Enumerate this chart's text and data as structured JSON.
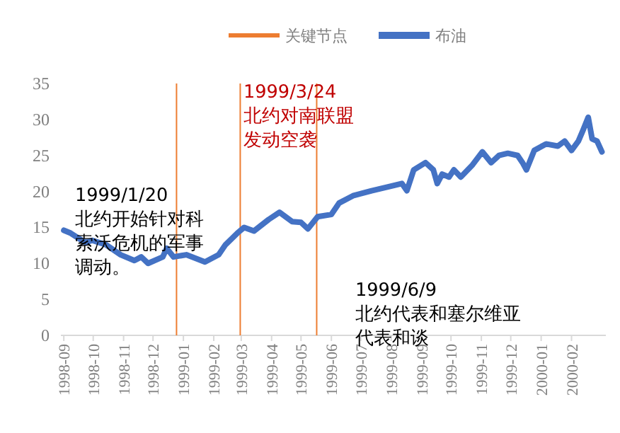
{
  "chart_data": {
    "type": "line",
    "x": [
      "1998-09-01",
      "1998-09-08",
      "1998-09-23",
      "1998-09-30",
      "1998-10-14",
      "1998-10-29",
      "1998-11-12",
      "1998-11-19",
      "1998-11-26",
      "1998-12-11",
      "1998-12-15",
      "1998-12-22",
      "1999-01-04",
      "1999-01-23",
      "1999-02-06",
      "1999-02-13",
      "1999-02-25",
      "1999-03-04",
      "1999-03-14",
      "1999-03-29",
      "1999-04-09",
      "1999-04-22",
      "1999-05-01",
      "1999-05-08",
      "1999-05-18",
      "1999-06-01",
      "1999-06-09",
      "1999-06-23",
      "1999-07-12",
      "1999-07-31",
      "1999-08-12",
      "1999-08-17",
      "1999-08-24",
      "1999-09-05",
      "1999-09-13",
      "1999-09-17",
      "1999-09-22",
      "1999-09-29",
      "1999-10-04",
      "1999-10-11",
      "1999-10-23",
      "1999-11-02",
      "1999-11-11",
      "1999-11-19",
      "1999-11-28",
      "1999-12-08",
      "1999-12-13",
      "1999-12-17",
      "1999-12-25",
      "2000-01-06",
      "2000-01-18",
      "2000-01-25",
      "2000-02-01",
      "2000-02-08",
      "2000-02-13",
      "2000-02-18",
      "2000-02-22",
      "2000-02-27",
      "2000-03-03"
    ],
    "series": [
      {
        "name": "布油",
        "color": "#4472c4",
        "values": [
          14.6,
          14.2,
          12.9,
          13.2,
          12.6,
          11.2,
          10.4,
          10.9,
          10.0,
          10.9,
          12.1,
          10.9,
          11.2,
          10.2,
          11.2,
          12.6,
          14.2,
          15.0,
          14.5,
          16.1,
          17.1,
          15.8,
          15.7,
          14.8,
          16.5,
          16.8,
          18.4,
          19.4,
          20.1,
          20.7,
          21.1,
          20.1,
          23.0,
          24.0,
          23.0,
          21.1,
          22.4,
          22.0,
          23.0,
          22.0,
          23.7,
          25.5,
          24.0,
          25.0,
          25.3,
          25.0,
          24.0,
          23.0,
          25.7,
          26.6,
          26.3,
          27.0,
          25.7,
          27.0,
          28.6,
          30.3,
          27.3,
          27.0,
          25.5
        ]
      }
    ],
    "ref_lines": [
      {
        "axis": "x",
        "value": "1998-12-25",
        "label": "关键节点",
        "color": "#ed7d31"
      },
      {
        "axis": "x",
        "value": "1999-02-28",
        "color": "#ed7d31"
      },
      {
        "axis": "x",
        "value": "1999-05-17",
        "color": "#ed7d31"
      }
    ],
    "annotations": [
      "1999/1/20 北约开始针对科索沃危机的军事调动。",
      "1999/3/24 北约对南联盟发动空袭",
      "1999/6/9 北约代表和塞尔维亚代表和谈"
    ],
    "xlim": [
      "1998-08-29",
      "2000-03-07"
    ],
    "xticks": [
      "1998-09",
      "1998-10",
      "1998-11",
      "1998-12",
      "1999-01",
      "1999-02",
      "1999-03",
      "1999-04",
      "1999-05",
      "1999-06",
      "1999-07",
      "1999-08",
      "1999-09",
      "1999-10",
      "1999-11",
      "1999-12",
      "2000-01",
      "2000-02"
    ],
    "ylim": [
      0,
      35
    ],
    "yticks": [
      0,
      5,
      10,
      15,
      20,
      25,
      30,
      35
    ],
    "grid": false,
    "legend": "top",
    "marker": "none",
    "line_style": "solid"
  }
}
